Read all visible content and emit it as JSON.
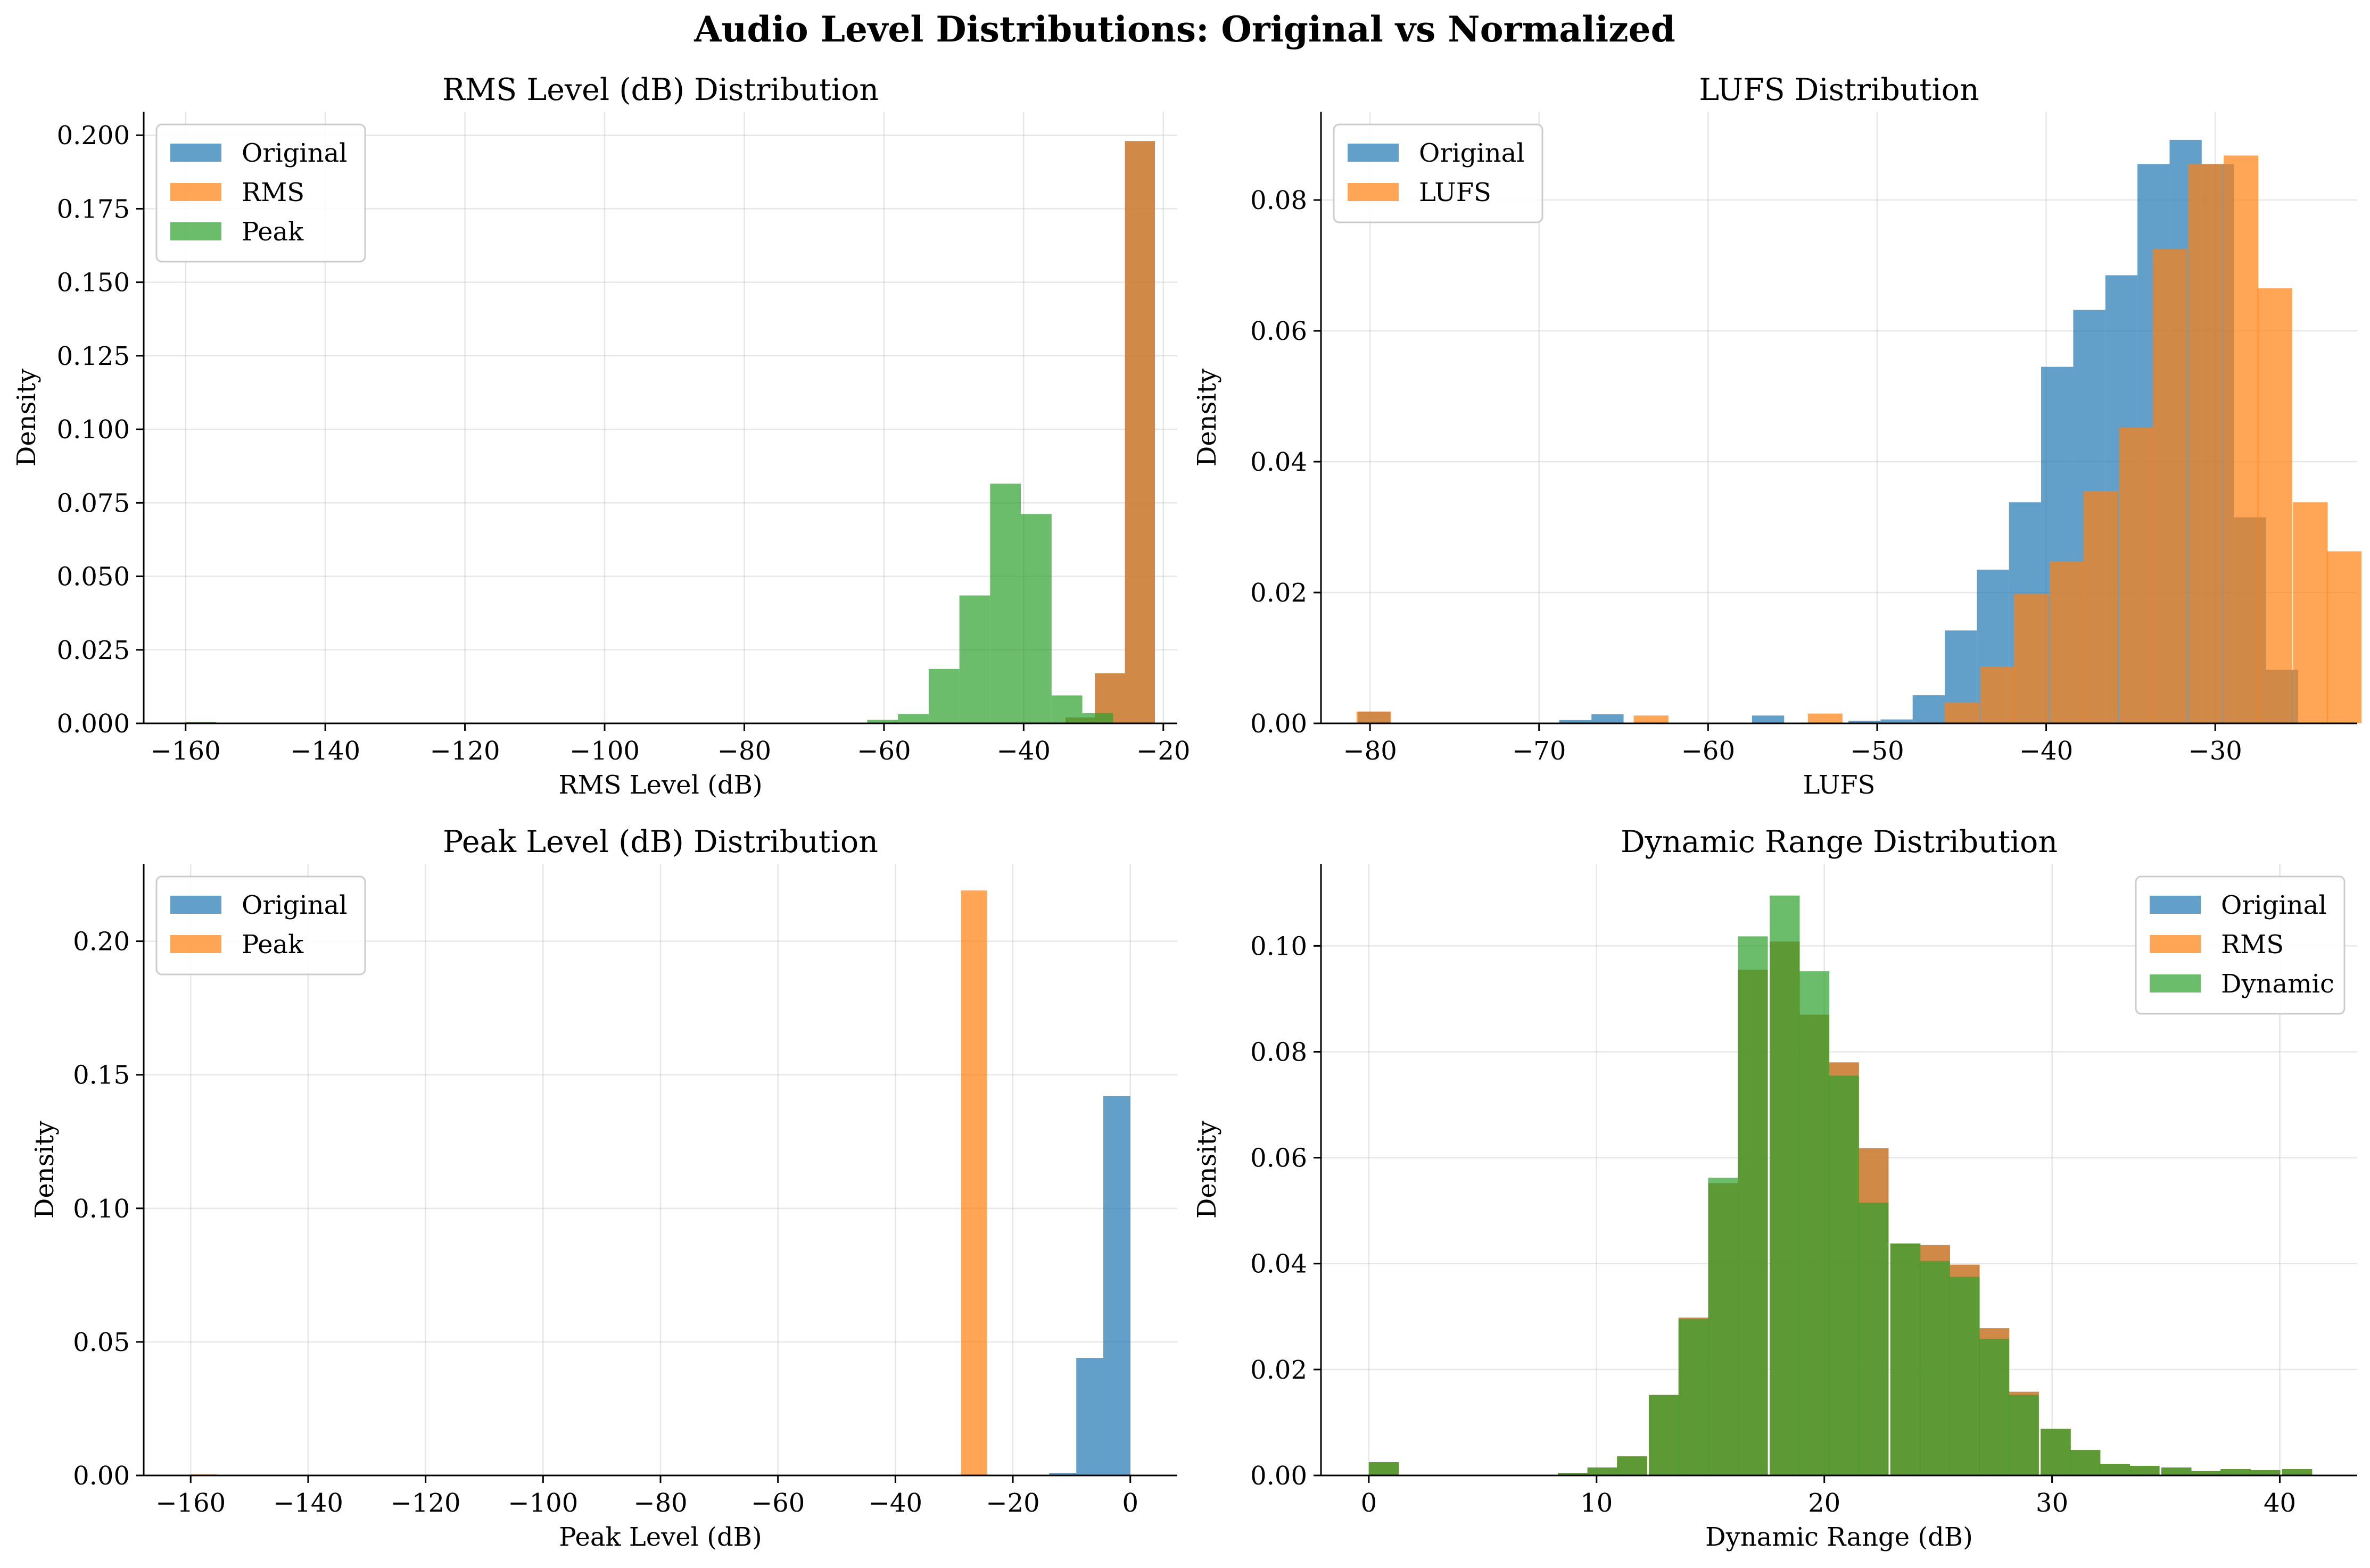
{
  "suptitle": "Audio Level Distributions: Original vs Normalized",
  "colors": {
    "blue": "#1f77b4",
    "orange": "#ff7f0e",
    "green": "#2ca02c"
  },
  "chart_data": [
    {
      "type": "bar",
      "title": "RMS Level (dB) Distribution",
      "xlabel": "RMS Level (dB)",
      "ylabel": "Density",
      "xlim": [
        -166,
        -18
      ],
      "ylim": [
        0,
        0.208
      ],
      "xticks": [
        -160,
        -140,
        -120,
        -100,
        -80,
        -60,
        -40,
        -20
      ],
      "yticks": [
        0,
        0.025,
        0.05,
        0.075,
        0.1,
        0.125,
        0.15,
        0.175,
        0.2
      ],
      "ytick_decimals": 3,
      "grid": true,
      "legend_position": "upper-left",
      "series": [
        {
          "name": "Original",
          "color": "#1f77b4",
          "opacity": 0.7,
          "bin_width": 4.3,
          "bins": [
            [
              -160,
              0.0004
            ],
            [
              -34,
              0.002
            ],
            [
              -29.8,
              0.017
            ],
            [
              -25.5,
              0.198
            ]
          ]
        },
        {
          "name": "RMS",
          "color": "#ff7f0e",
          "opacity": 0.7,
          "bin_width": 4.3,
          "bins": [
            [
              -160,
              0.0004
            ],
            [
              -34,
              0.002
            ],
            [
              -29.8,
              0.017
            ],
            [
              -25.5,
              0.198
            ]
          ]
        },
        {
          "name": "Peak",
          "color": "#2ca02c",
          "opacity": 0.7,
          "bin_width": 4.4,
          "bins": [
            [
              -160,
              0.0004
            ],
            [
              -62.4,
              0.0012
            ],
            [
              -58,
              0.0032
            ],
            [
              -53.6,
              0.0185
            ],
            [
              -49.2,
              0.0435
            ],
            [
              -44.8,
              0.0815
            ],
            [
              -40.4,
              0.0712
            ],
            [
              -36,
              0.0095
            ],
            [
              -31.6,
              0.0035
            ]
          ]
        }
      ]
    },
    {
      "type": "bar",
      "title": "LUFS Distribution",
      "xlabel": "LUFS",
      "ylabel": "Density",
      "xlim": [
        -82.9,
        -21.6
      ],
      "ylim": [
        0,
        0.0935
      ],
      "xticks": [
        -80,
        -70,
        -60,
        -50,
        -40,
        -30
      ],
      "yticks": [
        0,
        0.02,
        0.04,
        0.06,
        0.08
      ],
      "ytick_decimals": 2,
      "grid": true,
      "legend_position": "upper-left",
      "series": [
        {
          "name": "Original",
          "color": "#1f77b4",
          "opacity": 0.7,
          "bin_width": 1.9,
          "bins": [
            [
              -80.7,
              0.0018
            ],
            [
              -68.8,
              0.0005
            ],
            [
              -66.9,
              0.0014
            ],
            [
              -57.4,
              0.0012
            ],
            [
              -51.7,
              0.0004
            ],
            [
              -49.8,
              0.0006
            ],
            [
              -47.9,
              0.0043
            ],
            [
              -46.0,
              0.0142
            ],
            [
              -44.1,
              0.0235
            ],
            [
              -42.2,
              0.0338
            ],
            [
              -40.3,
              0.0545
            ],
            [
              -38.4,
              0.0632
            ],
            [
              -36.5,
              0.0685
            ],
            [
              -34.6,
              0.0855
            ],
            [
              -32.7,
              0.0892
            ],
            [
              -30.8,
              0.0855
            ],
            [
              -28.9,
              0.0315
            ],
            [
              -27.0,
              0.0082
            ]
          ]
        },
        {
          "name": "LUFS",
          "color": "#ff7f0e",
          "opacity": 0.7,
          "bin_width": 2.05,
          "bins": [
            [
              -80.8,
              0.0018
            ],
            [
              -64.4,
              0.0012
            ],
            [
              -54.1,
              0.0015
            ],
            [
              -46.0,
              0.0032
            ],
            [
              -43.9,
              0.0087
            ],
            [
              -41.9,
              0.0198
            ],
            [
              -39.8,
              0.0248
            ],
            [
              -37.8,
              0.0355
            ],
            [
              -35.7,
              0.0452
            ],
            [
              -33.7,
              0.0725
            ],
            [
              -31.6,
              0.0855
            ],
            [
              -29.5,
              0.0868
            ],
            [
              -27.5,
              0.0665
            ],
            [
              -25.4,
              0.0338
            ],
            [
              -23.4,
              0.0263
            ]
          ]
        }
      ]
    },
    {
      "type": "bar",
      "title": "Peak Level (dB) Distribution",
      "xlabel": "Peak Level (dB)",
      "ylabel": "Density",
      "xlim": [
        -168,
        8
      ],
      "ylim": [
        0,
        0.229
      ],
      "xticks": [
        -160,
        -140,
        -120,
        -100,
        -80,
        -60,
        -40,
        -20,
        0
      ],
      "yticks": [
        0,
        0.05,
        0.1,
        0.15,
        0.2
      ],
      "ytick_decimals": 2,
      "grid": true,
      "legend_position": "upper-left",
      "series": [
        {
          "name": "Original",
          "color": "#1f77b4",
          "opacity": 0.7,
          "bin_width": 4.6,
          "bins": [
            [
              -13.8,
              0.001
            ],
            [
              -9.2,
              0.044
            ],
            [
              -4.6,
              0.142
            ]
          ]
        },
        {
          "name": "Peak",
          "color": "#ff7f0e",
          "opacity": 0.7,
          "bin_width": 4.4,
          "bins": [
            [
              -160,
              0.0004
            ],
            [
              -28.8,
              0.219
            ]
          ]
        }
      ]
    },
    {
      "type": "bar",
      "title": "Dynamic Range Distribution",
      "xlabel": "Dynamic Range (dB)",
      "ylabel": "Density",
      "xlim": [
        -2.1,
        43.4
      ],
      "ylim": [
        0,
        0.1155
      ],
      "xticks": [
        0,
        10,
        20,
        30,
        40
      ],
      "yticks": [
        0,
        0.02,
        0.04,
        0.06,
        0.08,
        0.1
      ],
      "ytick_decimals": 2,
      "grid": true,
      "legend_position": "upper-right",
      "series": [
        {
          "name": "Original",
          "color": "#1f77b4",
          "opacity": 0.7,
          "bin_width": 1.32,
          "bins": [
            [
              0,
              0.0025
            ],
            [
              8.3,
              0.0005
            ],
            [
              9.6,
              0.0015
            ],
            [
              10.9,
              0.0036
            ],
            [
              12.3,
              0.0152
            ],
            [
              13.6,
              0.0298
            ],
            [
              14.9,
              0.0552
            ],
            [
              16.2,
              0.0955
            ],
            [
              17.6,
              0.1008
            ],
            [
              18.9,
              0.087
            ],
            [
              20.2,
              0.078
            ],
            [
              21.5,
              0.0618
            ],
            [
              22.9,
              0.0438
            ],
            [
              24.2,
              0.0435
            ],
            [
              25.5,
              0.0398
            ],
            [
              26.8,
              0.0278
            ],
            [
              28.1,
              0.0158
            ],
            [
              29.5,
              0.0088
            ],
            [
              30.8,
              0.0048
            ],
            [
              32.1,
              0.0022
            ],
            [
              33.4,
              0.0018
            ],
            [
              34.8,
              0.0015
            ],
            [
              36.1,
              0.0008
            ],
            [
              37.4,
              0.0012
            ],
            [
              38.7,
              0.001
            ],
            [
              40.1,
              0.0012
            ]
          ]
        },
        {
          "name": "RMS",
          "color": "#ff7f0e",
          "opacity": 0.7,
          "bin_width": 1.32,
          "bins": [
            [
              0,
              0.0025
            ],
            [
              8.3,
              0.0005
            ],
            [
              9.6,
              0.0015
            ],
            [
              10.9,
              0.0036
            ],
            [
              12.3,
              0.0152
            ],
            [
              13.6,
              0.0298
            ],
            [
              14.9,
              0.0552
            ],
            [
              16.2,
              0.0955
            ],
            [
              17.6,
              0.1008
            ],
            [
              18.9,
              0.087
            ],
            [
              20.2,
              0.078
            ],
            [
              21.5,
              0.0618
            ],
            [
              22.9,
              0.0438
            ],
            [
              24.2,
              0.0435
            ],
            [
              25.5,
              0.0398
            ],
            [
              26.8,
              0.0278
            ],
            [
              28.1,
              0.0158
            ],
            [
              29.5,
              0.0088
            ],
            [
              30.8,
              0.0048
            ],
            [
              32.1,
              0.0022
            ],
            [
              33.4,
              0.0018
            ],
            [
              34.8,
              0.0015
            ],
            [
              36.1,
              0.0008
            ],
            [
              37.4,
              0.0012
            ],
            [
              38.7,
              0.001
            ],
            [
              40.1,
              0.0012
            ]
          ]
        },
        {
          "name": "Dynamic",
          "color": "#2ca02c",
          "opacity": 0.7,
          "bin_width": 1.32,
          "bins": [
            [
              0,
              0.0025
            ],
            [
              8.3,
              0.0005
            ],
            [
              9.6,
              0.0015
            ],
            [
              10.9,
              0.0036
            ],
            [
              12.3,
              0.0152
            ],
            [
              13.6,
              0.0295
            ],
            [
              14.9,
              0.0562
            ],
            [
              16.2,
              0.1018
            ],
            [
              17.6,
              0.1095
            ],
            [
              18.9,
              0.0952
            ],
            [
              20.2,
              0.0755
            ],
            [
              21.5,
              0.0515
            ],
            [
              22.9,
              0.0438
            ],
            [
              24.2,
              0.0405
            ],
            [
              25.5,
              0.0375
            ],
            [
              26.8,
              0.0258
            ],
            [
              28.1,
              0.0152
            ],
            [
              29.5,
              0.0088
            ],
            [
              30.8,
              0.0048
            ],
            [
              32.1,
              0.0022
            ],
            [
              33.4,
              0.0018
            ],
            [
              34.8,
              0.0015
            ],
            [
              36.1,
              0.0008
            ],
            [
              37.4,
              0.0012
            ],
            [
              38.7,
              0.001
            ],
            [
              40.1,
              0.0012
            ]
          ]
        }
      ]
    }
  ]
}
